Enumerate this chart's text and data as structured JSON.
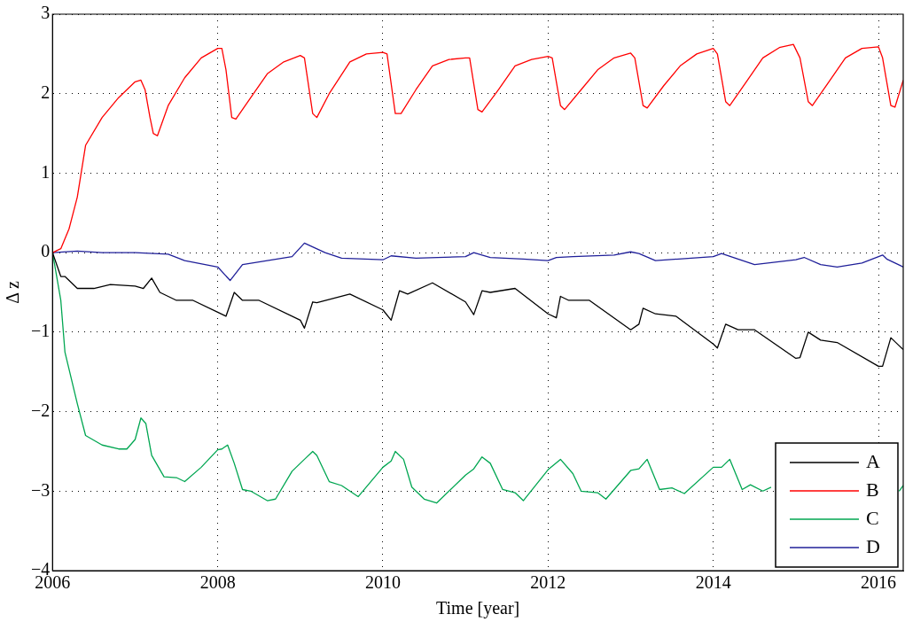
{
  "chart_data": {
    "type": "line",
    "xlabel": "Time [year]",
    "ylabel": "Δ z",
    "xlim": [
      2006,
      2016.3
    ],
    "xticks": [
      2006,
      2008,
      2010,
      2012,
      2014,
      2016
    ],
    "ylim": [
      -4,
      3
    ],
    "yticks": [
      -4,
      -3,
      -2,
      -1,
      0,
      1,
      2,
      3
    ],
    "grid": true,
    "legend": "bottom right",
    "line_style": "solid",
    "marker": "none",
    "series": [
      {
        "name": "A",
        "color": "#000000",
        "x": [
          2006,
          2006.1,
          2006.15,
          2006.3,
          2006.5,
          2006.7,
          2007.0,
          2007.1,
          2007.2,
          2007.3,
          2007.5,
          2007.7,
          2008.0,
          2008.1,
          2008.2,
          2008.3,
          2008.5,
          2009.0,
          2009.05,
          2009.15,
          2009.2,
          2009.6,
          2010.0,
          2010.1,
          2010.2,
          2010.3,
          2010.6,
          2011.0,
          2011.1,
          2011.2,
          2011.3,
          2011.6,
          2012.0,
          2012.1,
          2012.15,
          2012.25,
          2012.5,
          2013.0,
          2013.1,
          2013.15,
          2013.3,
          2013.55,
          2014.0,
          2014.05,
          2014.15,
          2014.3,
          2014.5,
          2015.0,
          2015.05,
          2015.15,
          2015.3,
          2015.5,
          2016.0,
          2016.05,
          2016.15,
          2016.25,
          2016.3
        ],
        "values": [
          0,
          -0.3,
          -0.3,
          -0.45,
          -0.45,
          -0.4,
          -0.42,
          -0.45,
          -0.32,
          -0.5,
          -0.6,
          -0.6,
          -0.75,
          -0.8,
          -0.5,
          -0.6,
          -0.6,
          -0.85,
          -0.95,
          -0.62,
          -0.63,
          -0.52,
          -0.72,
          -0.85,
          -0.48,
          -0.52,
          -0.38,
          -0.62,
          -0.78,
          -0.48,
          -0.5,
          -0.45,
          -0.77,
          -0.82,
          -0.55,
          -0.6,
          -0.6,
          -0.97,
          -0.9,
          -0.7,
          -0.77,
          -0.8,
          -1.15,
          -1.2,
          -0.9,
          -0.97,
          -0.97,
          -1.33,
          -1.32,
          -1.0,
          -1.1,
          -1.13,
          -1.43,
          -1.43,
          -1.07,
          -1.17,
          -1.22
        ]
      },
      {
        "name": "B",
        "color": "#ff0000",
        "x": [
          2006,
          2006.1,
          2006.2,
          2006.3,
          2006.4,
          2006.6,
          2006.8,
          2007.0,
          2007.07,
          2007.12,
          2007.18,
          2007.22,
          2007.27,
          2007.4,
          2007.6,
          2007.8,
          2008.0,
          2008.05,
          2008.1,
          2008.17,
          2008.22,
          2008.4,
          2008.6,
          2008.8,
          2009.0,
          2009.05,
          2009.15,
          2009.2,
          2009.35,
          2009.6,
          2009.8,
          2010.0,
          2010.05,
          2010.15,
          2010.22,
          2010.4,
          2010.6,
          2010.8,
          2011.0,
          2011.05,
          2011.15,
          2011.2,
          2011.4,
          2011.6,
          2011.8,
          2012.0,
          2012.05,
          2012.15,
          2012.2,
          2012.4,
          2012.6,
          2012.8,
          2013.0,
          2013.05,
          2013.15,
          2013.2,
          2013.4,
          2013.6,
          2013.8,
          2014.0,
          2014.05,
          2014.15,
          2014.2,
          2014.4,
          2014.6,
          2014.8,
          2014.97,
          2015.05,
          2015.15,
          2015.2,
          2015.4,
          2015.6,
          2015.8,
          2016.0,
          2016.05,
          2016.15,
          2016.2,
          2016.3
        ],
        "values": [
          0,
          0.05,
          0.3,
          0.7,
          1.35,
          1.7,
          1.95,
          2.15,
          2.17,
          2.05,
          1.7,
          1.5,
          1.47,
          1.85,
          2.2,
          2.45,
          2.57,
          2.57,
          2.3,
          1.7,
          1.68,
          1.95,
          2.25,
          2.4,
          2.48,
          2.45,
          1.75,
          1.7,
          2.0,
          2.4,
          2.5,
          2.52,
          2.5,
          1.75,
          1.75,
          2.05,
          2.35,
          2.43,
          2.45,
          2.45,
          1.8,
          1.77,
          2.05,
          2.35,
          2.43,
          2.47,
          2.45,
          1.85,
          1.8,
          2.05,
          2.3,
          2.45,
          2.51,
          2.45,
          1.85,
          1.82,
          2.1,
          2.35,
          2.5,
          2.57,
          2.5,
          1.9,
          1.85,
          2.15,
          2.45,
          2.58,
          2.62,
          2.45,
          1.9,
          1.85,
          2.15,
          2.45,
          2.57,
          2.59,
          2.45,
          1.85,
          1.83,
          2.17
        ]
      },
      {
        "name": "C",
        "color": "#00a651",
        "x": [
          2006,
          2006.1,
          2006.15,
          2006.3,
          2006.4,
          2006.6,
          2006.8,
          2006.9,
          2007.0,
          2007.07,
          2007.13,
          2007.2,
          2007.35,
          2007.5,
          2007.6,
          2007.8,
          2008.0,
          2008.05,
          2008.12,
          2008.2,
          2008.3,
          2008.4,
          2008.6,
          2008.7,
          2008.9,
          2009.05,
          2009.15,
          2009.2,
          2009.35,
          2009.5,
          2009.7,
          2010.0,
          2010.1,
          2010.15,
          2010.25,
          2010.35,
          2010.5,
          2010.65,
          2011.0,
          2011.1,
          2011.2,
          2011.3,
          2011.45,
          2011.6,
          2011.7,
          2012.0,
          2012.15,
          2012.3,
          2012.4,
          2012.6,
          2012.7,
          2013.0,
          2013.1,
          2013.2,
          2013.35,
          2013.5,
          2013.65,
          2014.0,
          2014.1,
          2014.2,
          2014.35,
          2014.45,
          2014.6,
          2014.7,
          2015.5,
          2016.25,
          2016.3
        ],
        "values": [
          0,
          -0.6,
          -1.25,
          -1.9,
          -2.3,
          -2.42,
          -2.47,
          -2.47,
          -2.35,
          -2.08,
          -2.15,
          -2.55,
          -2.82,
          -2.83,
          -2.88,
          -2.7,
          -2.48,
          -2.47,
          -2.42,
          -2.65,
          -2.98,
          -3.0,
          -3.12,
          -3.1,
          -2.75,
          -2.6,
          -2.5,
          -2.55,
          -2.88,
          -2.93,
          -3.07,
          -2.7,
          -2.62,
          -2.5,
          -2.6,
          -2.95,
          -3.1,
          -3.15,
          -2.8,
          -2.72,
          -2.57,
          -2.65,
          -2.98,
          -3.02,
          -3.12,
          -2.73,
          -2.6,
          -2.78,
          -3.0,
          -3.02,
          -3.1,
          -2.74,
          -2.72,
          -2.6,
          -2.98,
          -2.96,
          -3.03,
          -2.7,
          -2.7,
          -2.6,
          -2.98,
          -2.92,
          -3.0,
          -2.95,
          null,
          -3.0,
          -2.93
        ]
      },
      {
        "name": "D",
        "color": "#1f1f99",
        "x": [
          2006,
          2006.3,
          2006.6,
          2007,
          2007.4,
          2007.6,
          2008,
          2008.15,
          2008.3,
          2008.6,
          2008.9,
          2009.05,
          2009.3,
          2009.5,
          2010,
          2010.1,
          2010.4,
          2011.0,
          2011.1,
          2011.3,
          2011.7,
          2012.0,
          2012.1,
          2012.3,
          2012.8,
          2013.0,
          2013.1,
          2013.3,
          2014,
          2014.1,
          2014.5,
          2015,
          2015.1,
          2015.3,
          2015.5,
          2015.8,
          2016.05,
          2016.1,
          2016.3
        ],
        "values": [
          0,
          0.02,
          0,
          0,
          -0.02,
          -0.1,
          -0.18,
          -0.35,
          -0.15,
          -0.1,
          -0.05,
          0.12,
          0,
          -0.07,
          -0.09,
          -0.04,
          -0.07,
          -0.05,
          0,
          -0.06,
          -0.08,
          -0.1,
          -0.06,
          -0.05,
          -0.03,
          0.01,
          -0.01,
          -0.1,
          -0.05,
          -0.01,
          -0.15,
          -0.09,
          -0.06,
          -0.15,
          -0.18,
          -0.13,
          -0.03,
          -0.08,
          -0.18
        ]
      }
    ]
  }
}
